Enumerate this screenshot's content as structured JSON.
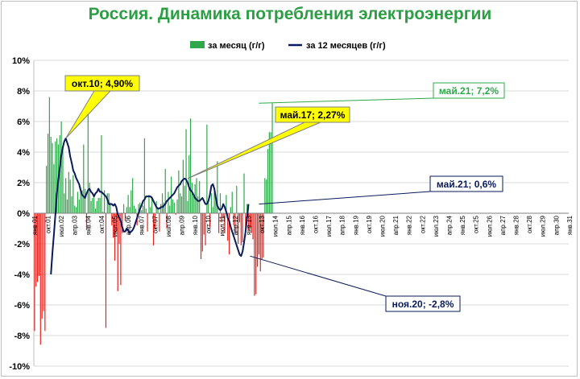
{
  "chart_data": {
    "type": "bar",
    "title": "Россия. Динамика потребления электроэнергии",
    "ylim": [
      -10,
      10
    ],
    "yticks": [
      10,
      8,
      6,
      4,
      2,
      0,
      -2,
      -4,
      -6,
      -8,
      -10
    ],
    "ytick_labels": [
      "10%",
      "8%",
      "6%",
      "4%",
      "2%",
      "0%",
      "-2%",
      "-4%",
      "-6%",
      "-8%",
      "-10%"
    ],
    "legend_position": "top",
    "x_tick_labels": [
      "янв.01",
      "окт.01",
      "июл.02",
      "апр.03",
      "янв.04",
      "окт.04",
      "июл.05",
      "апр.06",
      "янв.07",
      "окт.07",
      "июл.08",
      "апр.09",
      "янв.10",
      "окт.10",
      "июл.11",
      "апр.12",
      "янв.13",
      "окт.13",
      "июл.14",
      "апр.15",
      "янв.16",
      "окт.16",
      "июл.17",
      "апр.18",
      "янв.19",
      "окт.19",
      "июл.20",
      "апр.21",
      "янв.22",
      "окт.22",
      "июл.23",
      "апр.24",
      "янв.25",
      "окт.25",
      "июл.26",
      "апр.27",
      "янв.28",
      "окт.28",
      "июл.29",
      "апр.30",
      "янв.31"
    ],
    "series": [
      {
        "name": "за месяц (г/г)",
        "type": "bar",
        "positive_color": "#2ea84a",
        "negative_color": "#e8231e",
        "values": [
          -7.7,
          -4.8,
          -4.5,
          -4.1,
          -8.6,
          -6.9,
          -6.4,
          -7.7,
          3.1,
          5.2,
          7.6,
          5.0,
          4.6,
          3.2,
          4.7,
          4.9,
          4.5,
          5.1,
          6.0,
          4.4,
          1.3,
          2.3,
          0.9,
          2.7,
          2.2,
          1.1,
          2.5,
          0.5,
          0.4,
          1.4,
          0.9,
          1.7,
          1.5,
          4.5,
          1.6,
          -1.1,
          7.0,
          2.0,
          0.8,
          1.0,
          1.2,
          0.3,
          0.8,
          1.0,
          1.0,
          5.1,
          0.1,
          1.5,
          -7.5,
          1.3,
          1.3,
          0.7,
          -0.8,
          -1.6,
          -3.1,
          -1.2,
          -5.1,
          -2.0,
          -4.7,
          -1.3,
          0.6,
          -0.5,
          0.4,
          1.2,
          0.4,
          1.5,
          2.3,
          0.5,
          0.3,
          -0.8,
          0.6,
          0.7,
          0.2,
          0.5,
          4.9,
          0.3,
          -1.2,
          1.2,
          0.4,
          1.1,
          -2.1,
          -1.0,
          0.8,
          0.4,
          -1.2,
          0.6,
          1.3,
          0.7,
          2.9,
          -1.0,
          1.4,
          0.5,
          2.4,
          0.9,
          0.7,
          -0.1,
          0.9,
          2.8,
          1.3,
          1.1,
          3.5,
          1.8,
          5.5,
          0.8,
          3.8,
          6.2,
          2.0,
          1.1,
          1.9,
          2.3,
          1.1,
          2.1,
          -3.0,
          -2.5,
          -1.4,
          -2.1,
          5.8,
          0.7,
          -0.9,
          1.3,
          0.4,
          1.6,
          1.0,
          3.4,
          -1.3,
          1.3,
          -0.6,
          -0.3,
          -1.3,
          1.2,
          -1.8,
          -2.7,
          0.4,
          1.4,
          -0.8,
          -1.3,
          1.8,
          -2.0,
          -0.6,
          -2.1,
          -1.9,
          2.6,
          -1.5,
          0.6,
          -1.1,
          -0.9,
          -1.3,
          -1.7,
          -5.4,
          -5.3,
          -3.5,
          -2.7,
          -3.8,
          -3.0,
          -2.9,
          2.3,
          2.2,
          4.2,
          5.3,
          5.3,
          7.2
        ]
      },
      {
        "name": "за 12 месяцев (г/г)",
        "type": "line",
        "color": "#0a1a5a",
        "start_index": 11,
        "values": [
          -4.0,
          -2.6,
          -1.4,
          -0.1,
          1.3,
          2.2,
          3.0,
          3.8,
          4.3,
          4.7,
          4.9,
          4.6,
          4.3,
          3.7,
          3.3,
          2.8,
          2.6,
          2.3,
          2.1,
          1.9,
          1.5,
          1.2,
          1.1,
          1.0,
          1.3,
          1.5,
          1.6,
          1.4,
          1.3,
          1.1,
          1.3,
          1.4,
          1.6,
          1.4,
          1.4,
          1.3,
          1.2,
          1.1,
          0.9,
          0.6,
          0.6,
          0.6,
          0.5,
          0.6,
          0.4,
          -0.1,
          -0.3,
          -0.5,
          -0.9,
          -1.2,
          -1.2,
          -1.0,
          -1.1,
          -1.3,
          -1.2,
          -1.1,
          -0.9,
          -0.6,
          -0.3,
          0.0,
          0.3,
          0.5,
          0.8,
          0.9,
          1.1,
          1.1,
          1.1,
          1.1,
          1.0,
          0.8,
          0.6,
          0.4,
          0.3,
          0.3,
          0.4,
          0.4,
          0.5,
          0.6,
          0.8,
          0.9,
          1.0,
          1.1,
          1.2,
          1.3,
          1.5,
          1.7,
          1.8,
          1.9,
          2.1,
          2.2,
          2.27,
          2.2,
          2.0,
          1.7,
          1.5,
          1.4,
          1.2,
          1.0,
          0.9,
          0.8,
          0.8,
          0.9,
          1.0,
          0.8,
          0.6,
          0.6,
          0.8,
          1.2,
          1.8,
          1.9,
          1.6,
          1.0,
          0.5,
          0.3,
          0.2,
          0.3,
          0.6,
          0.4,
          0.1,
          -0.3,
          -0.5,
          -0.9,
          -1.2,
          -1.5,
          -1.8,
          -2.1,
          -2.4,
          -2.7,
          -2.8,
          -2.5,
          -1.9,
          -1.2,
          -0.3,
          0.6
        ]
      }
    ],
    "annotations": [
      {
        "text": "окт.10; 4,90%",
        "style": "callout-yellow",
        "bar_index": 21,
        "value": 4.9
      },
      {
        "text": "май.17; 2,27%",
        "style": "callout-yellow",
        "bar_index": 103,
        "value": 2.27
      },
      {
        "text": "май.21; 7,2%",
        "style": "label-green",
        "bar_index": 151,
        "value": 7.2
      },
      {
        "text": "май.21; 0,6%",
        "style": "label-navy",
        "bar_index": 151,
        "value": 0.6
      },
      {
        "text": "ноя.20; -2,8%",
        "style": "label-navy",
        "bar_index": 145,
        "value": -2.8
      }
    ]
  }
}
